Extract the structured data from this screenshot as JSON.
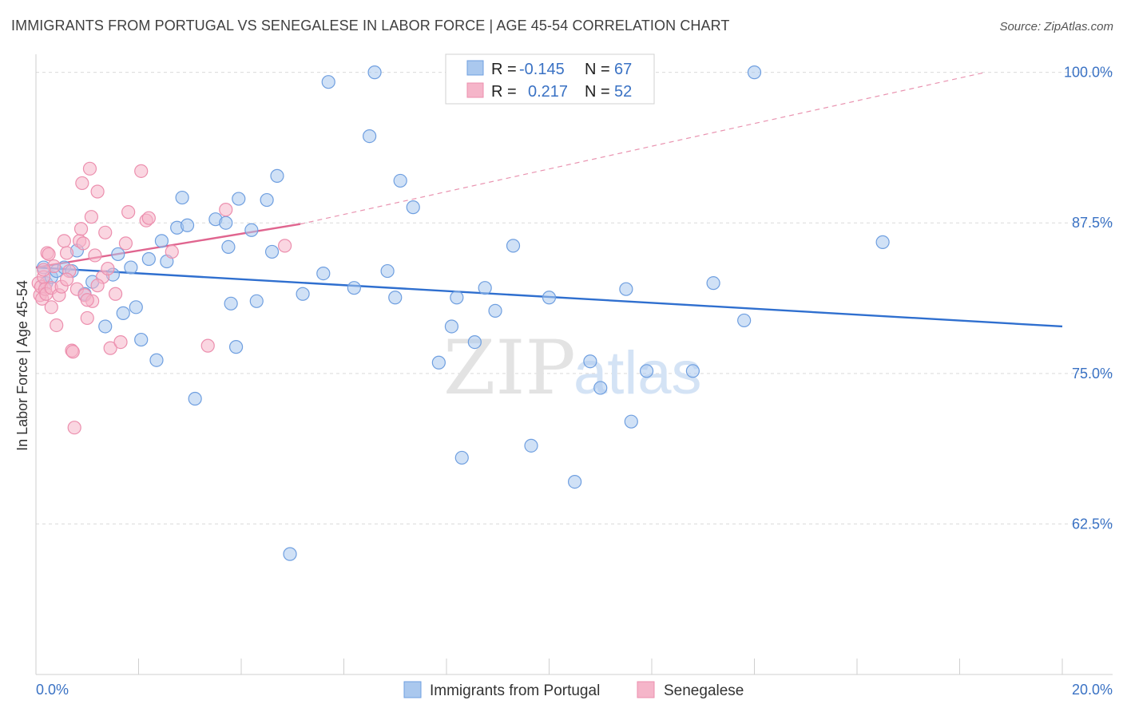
{
  "header": {
    "title": "IMMIGRANTS FROM PORTUGAL VS SENEGALESE IN LABOR FORCE | AGE 45-54 CORRELATION CHART",
    "source": "Source: ZipAtlas.com"
  },
  "watermark": {
    "zip": "ZIP",
    "atlas": "atlas"
  },
  "colors": {
    "blue_fill": "#aac8ee",
    "blue_stroke": "#6f9fe0",
    "blue_line": "#2f6fcf",
    "pink_fill": "#f5b5c9",
    "pink_stroke": "#ec8fae",
    "pink_line": "#e0658f",
    "grid": "#d9d9d9",
    "tick_label": "#3a72c4"
  },
  "legend": {
    "rows": [
      {
        "r_label": "R =",
        "r_value": "-0.145",
        "n_label": "N =",
        "n_value": "67"
      },
      {
        "r_label": "R =",
        "r_value": "0.217",
        "n_label": "N =",
        "n_value": "52"
      }
    ]
  },
  "chart_data": {
    "type": "scatter",
    "title": "IMMIGRANTS FROM PORTUGAL VS SENEGALESE IN LABOR FORCE | AGE 45-54 CORRELATION CHART",
    "ylabel": "In Labor Force | Age 45-54",
    "xlabel": "",
    "xlim": [
      0,
      20
    ],
    "ylim": [
      50,
      101.5
    ],
    "x_tick_labels": [
      "0.0%",
      "20.0%"
    ],
    "y_ticks": [
      {
        "value": 100,
        "label": "100.0%"
      },
      {
        "value": 87.5,
        "label": "87.5%"
      },
      {
        "value": 75,
        "label": "75.0%"
      },
      {
        "value": 62.5,
        "label": "62.5%"
      }
    ],
    "grid": true,
    "legend_position": "top-center",
    "series": [
      {
        "name": "Immigrants from Portugal",
        "color": "#aac8ee",
        "trend": {
          "x": [
            0,
            20
          ],
          "y": [
            83.8,
            78.9
          ],
          "style": "solid"
        },
        "points": [
          [
            0.15,
            83.8
          ],
          [
            0.2,
            82.5
          ],
          [
            0.3,
            83.0
          ],
          [
            0.4,
            83.5
          ],
          [
            0.55,
            83.8
          ],
          [
            0.7,
            83.5
          ],
          [
            0.8,
            85.2
          ],
          [
            0.95,
            81.6
          ],
          [
            1.1,
            82.6
          ],
          [
            1.35,
            78.9
          ],
          [
            1.5,
            83.2
          ],
          [
            1.6,
            84.9
          ],
          [
            1.7,
            80.0
          ],
          [
            1.85,
            83.8
          ],
          [
            1.95,
            80.5
          ],
          [
            2.05,
            77.8
          ],
          [
            2.2,
            84.5
          ],
          [
            2.35,
            76.1
          ],
          [
            2.45,
            86.0
          ],
          [
            2.55,
            84.3
          ],
          [
            2.75,
            87.1
          ],
          [
            2.85,
            89.6
          ],
          [
            2.95,
            87.3
          ],
          [
            3.1,
            72.9
          ],
          [
            3.5,
            87.8
          ],
          [
            3.7,
            87.5
          ],
          [
            3.75,
            85.5
          ],
          [
            3.8,
            80.8
          ],
          [
            3.9,
            77.2
          ],
          [
            3.95,
            89.5
          ],
          [
            4.2,
            86.9
          ],
          [
            4.3,
            81.0
          ],
          [
            4.5,
            89.4
          ],
          [
            4.6,
            85.1
          ],
          [
            4.7,
            91.4
          ],
          [
            4.95,
            60.0
          ],
          [
            5.2,
            81.6
          ],
          [
            5.6,
            83.3
          ],
          [
            5.7,
            99.2
          ],
          [
            6.2,
            82.1
          ],
          [
            6.5,
            94.7
          ],
          [
            6.6,
            100.0
          ],
          [
            6.85,
            83.5
          ],
          [
            7.0,
            81.3
          ],
          [
            7.1,
            91.0
          ],
          [
            7.35,
            88.8
          ],
          [
            7.85,
            75.9
          ],
          [
            8.1,
            78.9
          ],
          [
            8.2,
            81.3
          ],
          [
            8.3,
            68.0
          ],
          [
            8.55,
            77.6
          ],
          [
            8.75,
            82.1
          ],
          [
            8.95,
            80.2
          ],
          [
            9.3,
            85.6
          ],
          [
            9.65,
            69.0
          ],
          [
            10.0,
            81.3
          ],
          [
            10.5,
            66.0
          ],
          [
            10.8,
            76.0
          ],
          [
            11.0,
            73.8
          ],
          [
            11.5,
            82.0
          ],
          [
            11.6,
            71.0
          ],
          [
            11.9,
            75.2
          ],
          [
            13.2,
            82.5
          ],
          [
            13.8,
            79.4
          ],
          [
            14.0,
            100.0
          ],
          [
            16.5,
            85.9
          ],
          [
            12.8,
            75.2
          ]
        ]
      },
      {
        "name": "Senegalese",
        "color": "#f5b5c9",
        "trend": {
          "x": [
            0,
            5.15
          ],
          "y": [
            83.8,
            87.4
          ],
          "style": "solid",
          "extension": {
            "x": [
              5.15,
              18.5
            ],
            "y": [
              87.4,
              100.0
            ],
            "style": "dashed"
          }
        },
        "points": [
          [
            0.05,
            82.5
          ],
          [
            0.08,
            81.5
          ],
          [
            0.1,
            82.2
          ],
          [
            0.12,
            81.2
          ],
          [
            0.15,
            83.0
          ],
          [
            0.18,
            82.0
          ],
          [
            0.2,
            81.6
          ],
          [
            0.22,
            85.0
          ],
          [
            0.25,
            84.9
          ],
          [
            0.3,
            82.1
          ],
          [
            0.35,
            83.9
          ],
          [
            0.4,
            79.0
          ],
          [
            0.45,
            81.5
          ],
          [
            0.5,
            82.2
          ],
          [
            0.55,
            86.0
          ],
          [
            0.6,
            85.0
          ],
          [
            0.65,
            83.5
          ],
          [
            0.7,
            76.9
          ],
          [
            0.72,
            76.8
          ],
          [
            0.75,
            70.5
          ],
          [
            0.8,
            82.0
          ],
          [
            0.85,
            86.0
          ],
          [
            0.88,
            87.0
          ],
          [
            0.9,
            90.8
          ],
          [
            0.92,
            85.8
          ],
          [
            0.95,
            81.5
          ],
          [
            1.0,
            79.6
          ],
          [
            1.05,
            92.0
          ],
          [
            1.08,
            88.0
          ],
          [
            1.1,
            81.0
          ],
          [
            1.15,
            84.8
          ],
          [
            1.2,
            90.1
          ],
          [
            1.3,
            83.0
          ],
          [
            1.35,
            86.7
          ],
          [
            1.4,
            83.7
          ],
          [
            1.45,
            77.1
          ],
          [
            1.55,
            81.6
          ],
          [
            1.65,
            77.6
          ],
          [
            1.75,
            85.8
          ],
          [
            1.8,
            88.4
          ],
          [
            2.05,
            91.8
          ],
          [
            2.15,
            87.7
          ],
          [
            2.2,
            87.9
          ],
          [
            2.65,
            85.1
          ],
          [
            3.35,
            77.3
          ],
          [
            3.7,
            88.6
          ],
          [
            4.85,
            85.6
          ],
          [
            0.6,
            82.8
          ],
          [
            0.3,
            80.5
          ],
          [
            1.2,
            82.3
          ],
          [
            0.15,
            83.6
          ],
          [
            1.0,
            81.1
          ]
        ]
      }
    ]
  },
  "bottom_legend": [
    {
      "label": "Immigrants from Portugal"
    },
    {
      "label": "Senegalese"
    }
  ]
}
